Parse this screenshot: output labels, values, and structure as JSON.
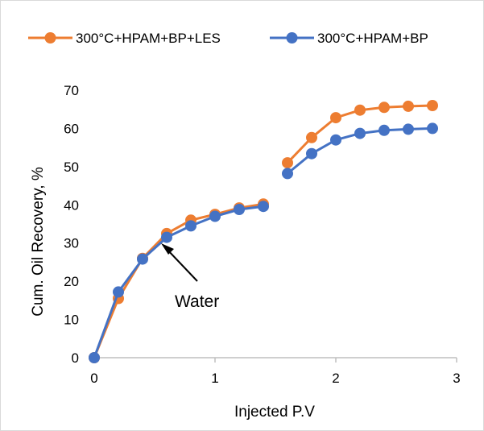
{
  "chart_data": {
    "type": "line",
    "xlabel": "Injected P.V",
    "ylabel": "Cum. Oil Recovery, %",
    "xlim": [
      0,
      3
    ],
    "ylim": [
      0,
      70
    ],
    "xticks": [
      0,
      1,
      2,
      3
    ],
    "yticks": [
      0,
      10,
      20,
      30,
      40,
      50,
      60,
      70
    ],
    "grid": false,
    "legend_position": "top",
    "annotation": {
      "text": "Water",
      "points_to": [
        0.6,
        31
      ]
    },
    "series": [
      {
        "name": "300°C+HPAM+BP+LES",
        "color": "#ED7D31",
        "segments": [
          [
            [
              0,
              0
            ],
            [
              0.2,
              15.5
            ],
            [
              0.4,
              26
            ],
            [
              0.6,
              32.5
            ],
            [
              0.8,
              36
            ],
            [
              1.0,
              37.5
            ],
            [
              1.2,
              39.2
            ],
            [
              1.4,
              40.2
            ]
          ],
          [
            [
              1.6,
              51
            ],
            [
              1.8,
              57.6
            ],
            [
              2.0,
              62.8
            ],
            [
              2.2,
              64.8
            ],
            [
              2.4,
              65.5
            ],
            [
              2.6,
              65.8
            ],
            [
              2.8,
              66
            ]
          ]
        ]
      },
      {
        "name": "300°C+HPAM+BP",
        "color": "#4472C4",
        "segments": [
          [
            [
              0,
              0
            ],
            [
              0.2,
              17.2
            ],
            [
              0.4,
              25.8
            ],
            [
              0.6,
              31.5
            ],
            [
              0.8,
              34.5
            ],
            [
              1.0,
              37
            ],
            [
              1.2,
              38.8
            ],
            [
              1.4,
              39.6
            ]
          ],
          [
            [
              1.6,
              48.2
            ],
            [
              1.8,
              53.4
            ],
            [
              2.0,
              57
            ],
            [
              2.2,
              58.7
            ],
            [
              2.4,
              59.5
            ],
            [
              2.6,
              59.8
            ],
            [
              2.8,
              60
            ]
          ]
        ]
      }
    ]
  }
}
